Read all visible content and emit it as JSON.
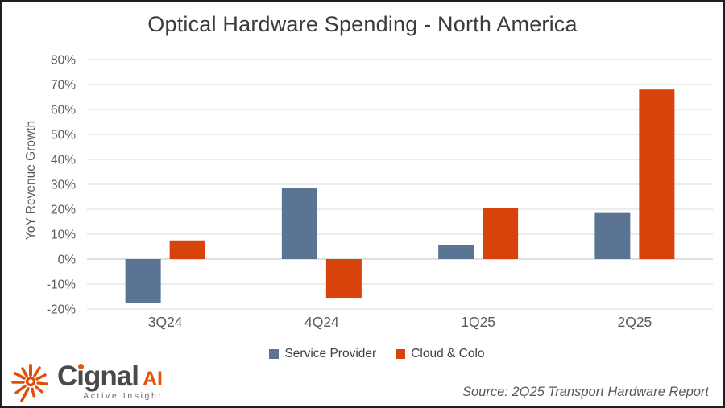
{
  "chart_data": {
    "type": "bar",
    "title": "Optical Hardware Spending - North America",
    "categories": [
      "3Q24",
      "4Q24",
      "1Q25",
      "2Q25"
    ],
    "series": [
      {
        "name": "Service Provider",
        "color": "#5b7494",
        "values": [
          -17.5,
          28.5,
          5.5,
          18.5
        ]
      },
      {
        "name": "Cloud & Colo",
        "color": "#d6440b",
        "values": [
          7.5,
          -15.5,
          20.5,
          68
        ]
      }
    ],
    "xlabel": "",
    "ylabel": "YoY Revenue Growth",
    "ylim": [
      -20,
      80
    ],
    "yticks": [
      "80%",
      "70%",
      "60%",
      "50%",
      "40%",
      "30%",
      "20%",
      "10%",
      "0%",
      "-10%",
      "-20%"
    ],
    "grid": true,
    "legend_position": "bottom",
    "gridline_color": "#d9d9d9",
    "zero_line_color": "#c2c2c2",
    "tick_label_color": "#595959"
  },
  "footer": {
    "logo": {
      "brand": "Cignal",
      "brand_suffix": "AI",
      "tagline": "Active Insight",
      "accent_color": "#e45207"
    },
    "source": "Source: 2Q25 Transport Hardware Report"
  }
}
